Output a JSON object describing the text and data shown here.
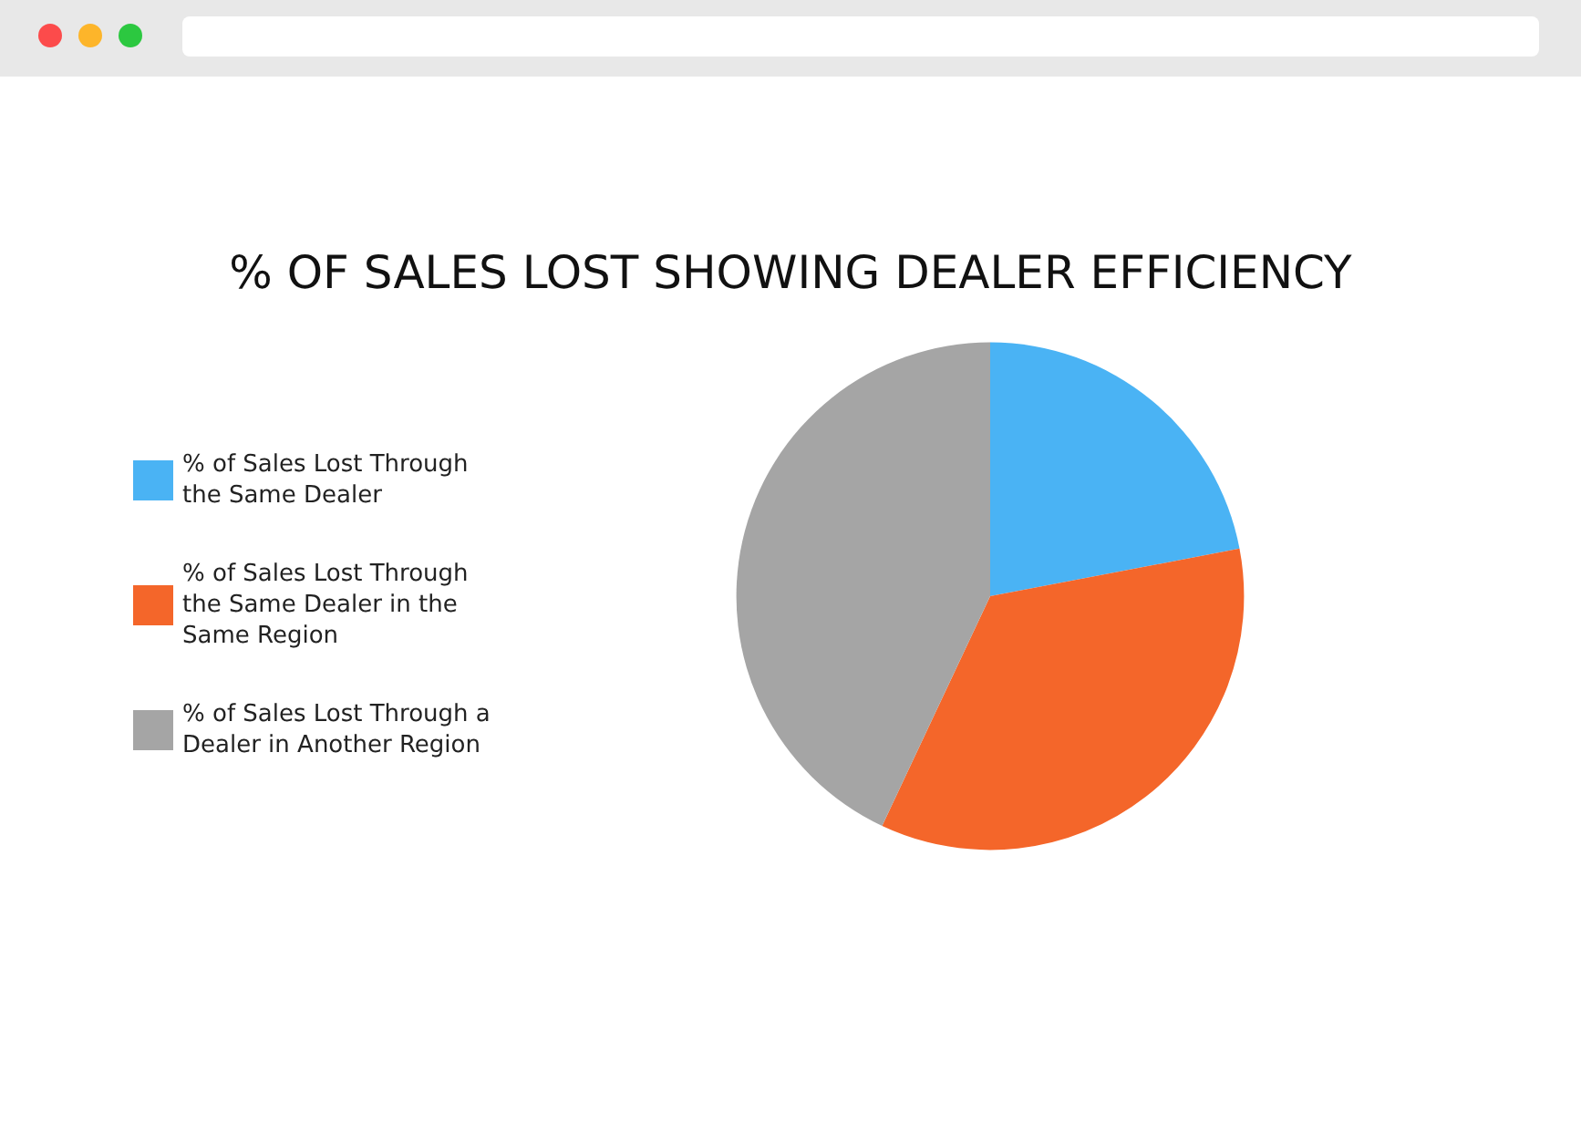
{
  "chart_data": {
    "type": "pie",
    "title": "% OF SALES LOST SHOWING DEALER EFFICIENCY",
    "categories": [
      "% of Sales Lost Through the Same Dealer",
      "% of Sales Lost Through the Same Dealer in the Same Region",
      "% of Sales Lost Through a Dealer in Another Region"
    ],
    "values": [
      22,
      35,
      43
    ],
    "colors": [
      "#4ab3f4",
      "#f4662a",
      "#a5a5a5"
    ],
    "legend": "left"
  }
}
